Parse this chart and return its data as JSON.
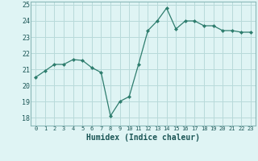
{
  "x": [
    0,
    1,
    2,
    3,
    4,
    5,
    6,
    7,
    8,
    9,
    10,
    11,
    12,
    13,
    14,
    15,
    16,
    17,
    18,
    19,
    20,
    21,
    22,
    23
  ],
  "y": [
    20.5,
    20.9,
    21.3,
    21.3,
    21.6,
    21.55,
    21.1,
    20.8,
    18.1,
    19.0,
    19.3,
    21.3,
    23.4,
    24.0,
    24.8,
    23.5,
    24.0,
    24.0,
    23.7,
    23.7,
    23.4,
    23.4,
    23.3,
    23.3
  ],
  "xlabel": "Humidex (Indice chaleur)",
  "ylabel": "",
  "xlim": [
    -0.5,
    23.5
  ],
  "ylim": [
    17.5,
    25.2
  ],
  "yticks": [
    18,
    19,
    20,
    21,
    22,
    23,
    24,
    25
  ],
  "xtick_labels": [
    "0",
    "1",
    "2",
    "3",
    "4",
    "5",
    "6",
    "7",
    "8",
    "9",
    "10",
    "11",
    "12",
    "13",
    "14",
    "15",
    "16",
    "17",
    "18",
    "19",
    "20",
    "21",
    "22",
    "23"
  ],
  "line_color": "#2e7d6e",
  "marker": "D",
  "marker_size": 2.0,
  "bg_color": "#dff4f4",
  "grid_color": "#b8dada",
  "spine_color": "#8ab8b8"
}
